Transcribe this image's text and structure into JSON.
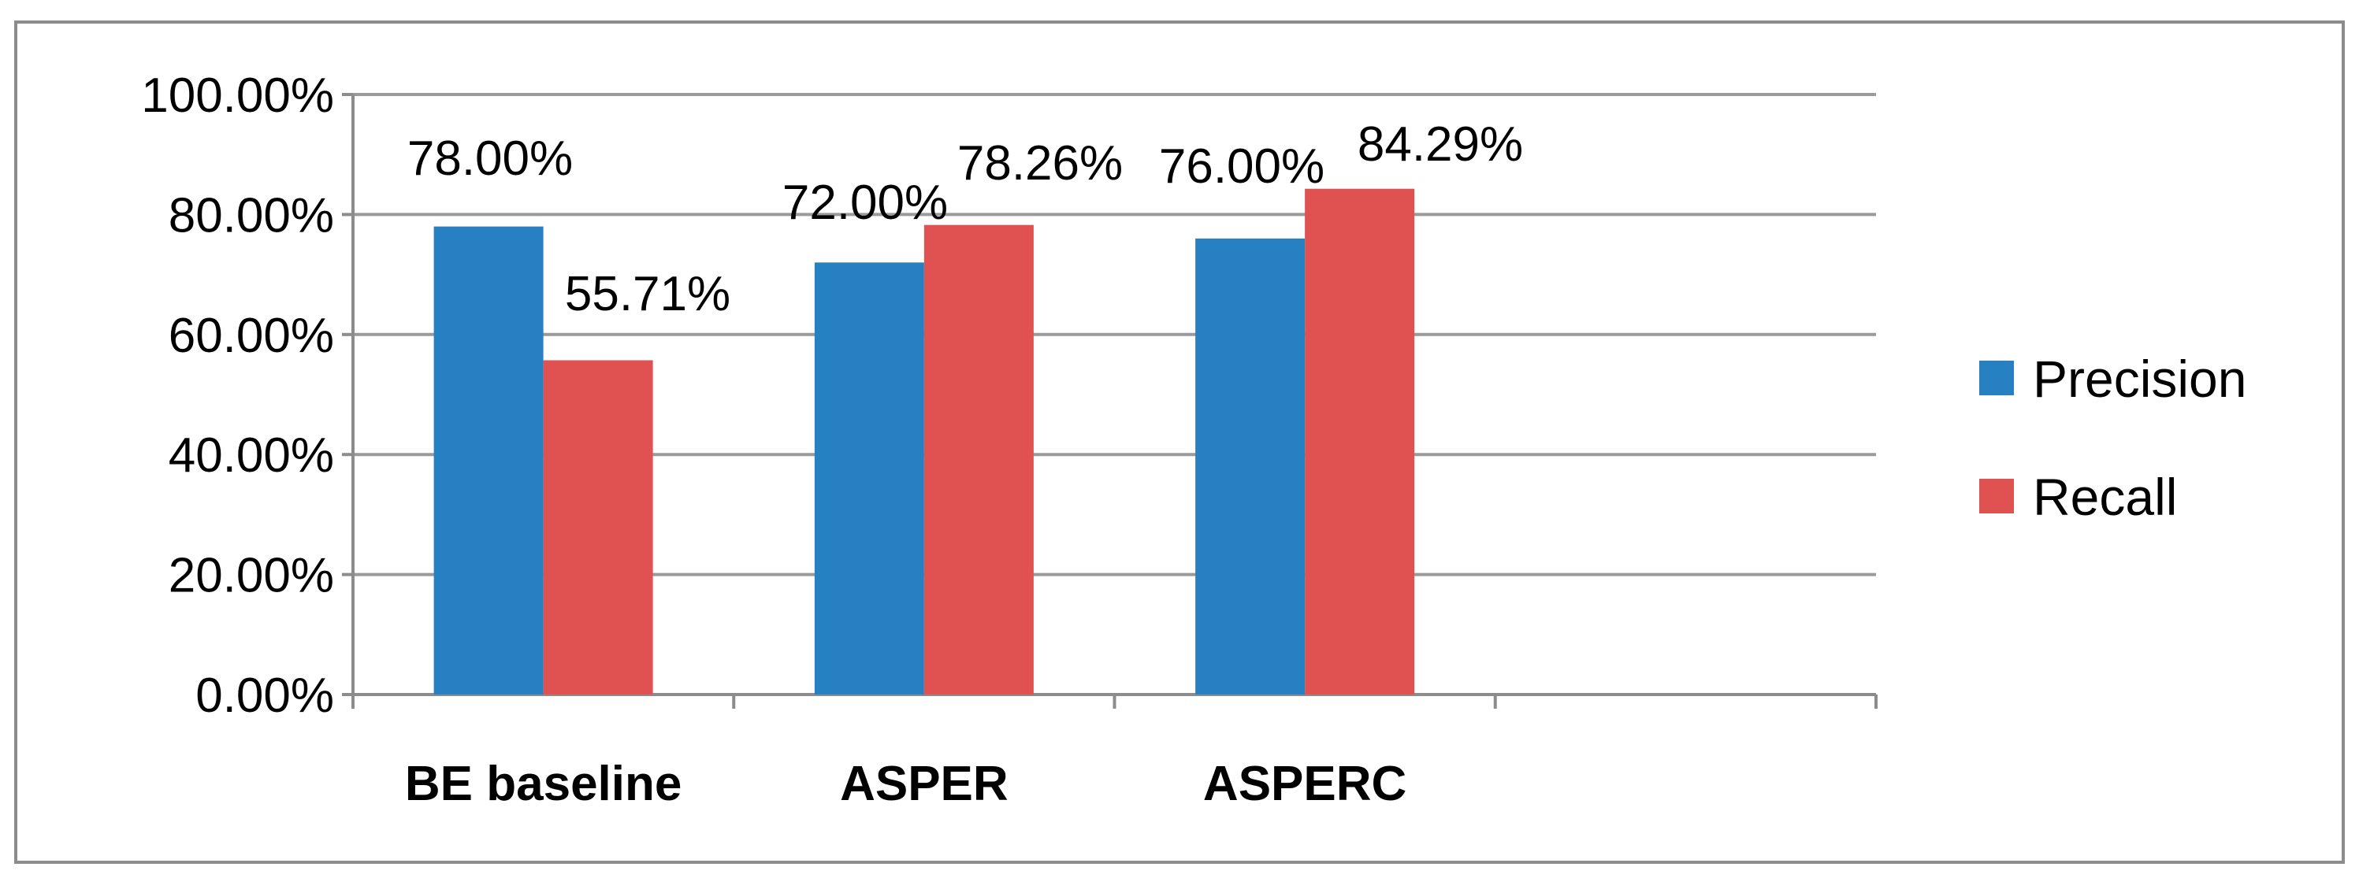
{
  "chart_data": {
    "type": "bar",
    "categories": [
      "BE baseline",
      "ASPER",
      "ASPERC",
      ""
    ],
    "series": [
      {
        "name": "Precision",
        "values": [
          78.0,
          72.0,
          76.0,
          null
        ],
        "labels": [
          "78.00%",
          "72.00%",
          "76.00%",
          ""
        ],
        "color": "#2680C2"
      },
      {
        "name": "Recall",
        "values": [
          55.71,
          78.26,
          84.29,
          null
        ],
        "labels": [
          "55.71%",
          "78.26%",
          "84.29%",
          ""
        ],
        "color": "#E05252"
      }
    ],
    "ylim": [
      0,
      100
    ],
    "yticks": [
      "0.00%",
      "20.00%",
      "40.00%",
      "60.00%",
      "80.00%",
      "100.00%"
    ],
    "ytick_values": [
      0,
      20,
      40,
      60,
      80,
      100
    ],
    "grid": true,
    "legend_position": "right",
    "colors": {
      "grid": "#9A9A9A",
      "axis": "#8C8C8C",
      "border": "#8C8C8C"
    }
  }
}
